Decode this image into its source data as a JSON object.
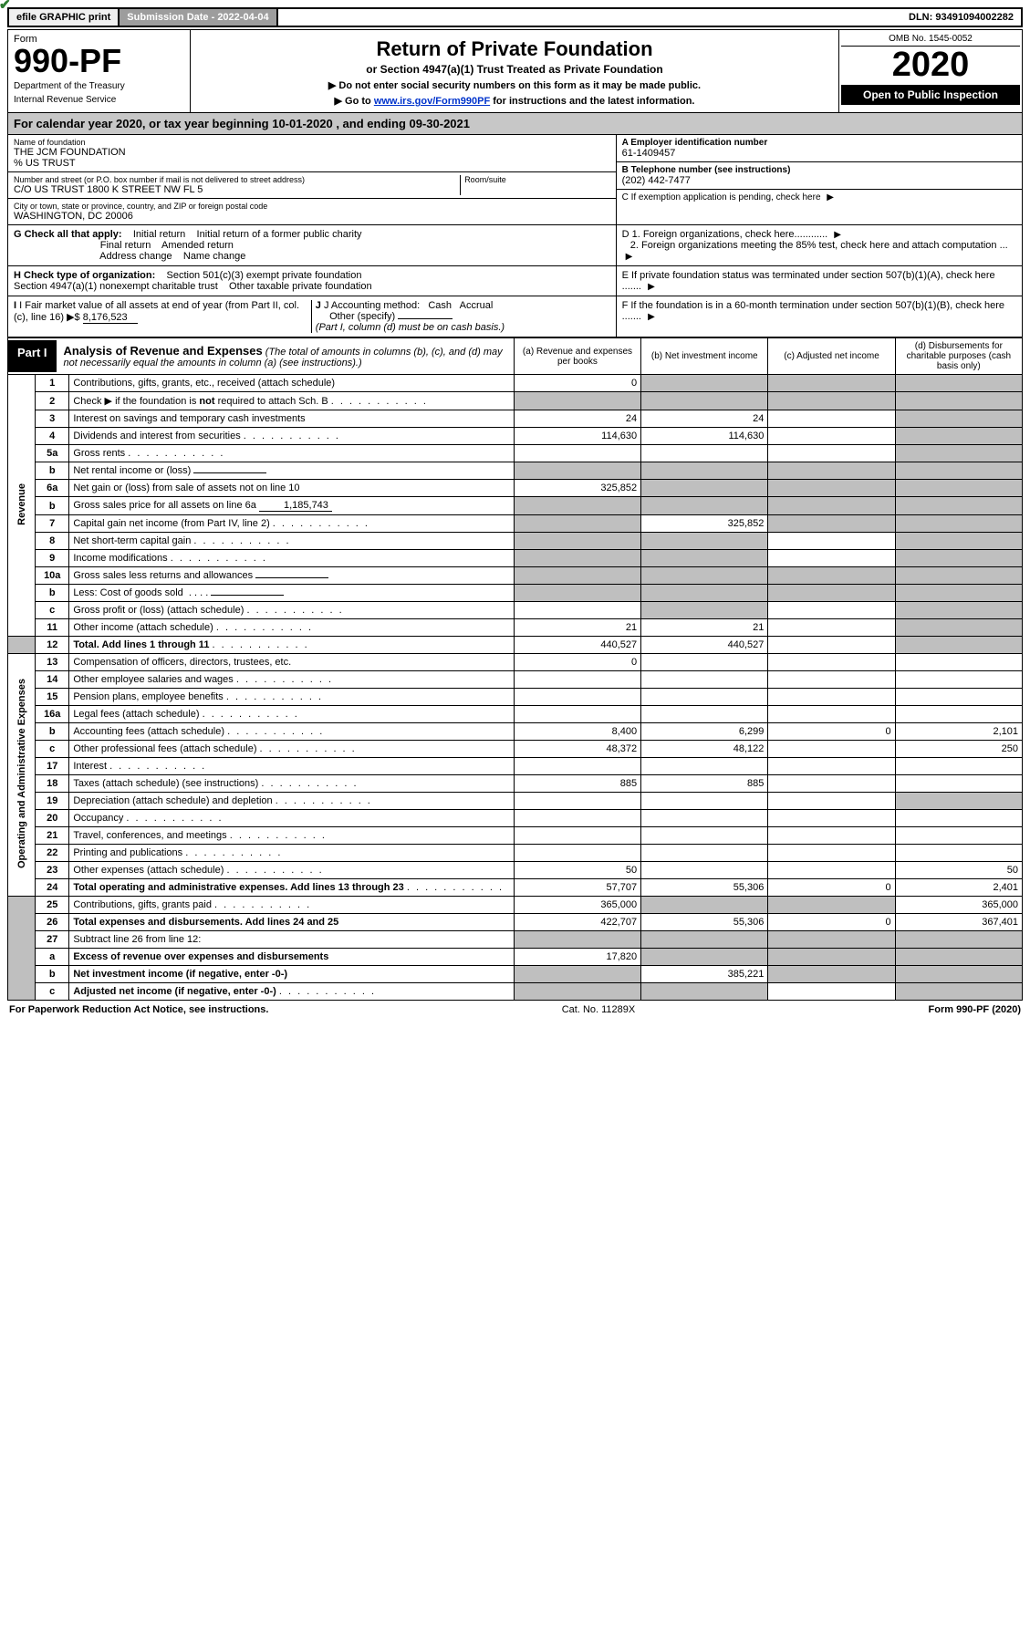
{
  "topbar": {
    "efile": "efile GRAPHIC print",
    "submission_label": "Submission Date - 2022-04-04",
    "dln_label": "DLN: 93491094002282"
  },
  "header": {
    "form_word": "Form",
    "form_number": "990-PF",
    "dept1": "Department of the Treasury",
    "dept2": "Internal Revenue Service",
    "title": "Return of Private Foundation",
    "subtitle": "or Section 4947(a)(1) Trust Treated as Private Foundation",
    "instr1": "▶ Do not enter social security numbers on this form as it may be made public.",
    "instr2_pre": "▶ Go to ",
    "instr2_link": "www.irs.gov/Form990PF",
    "instr2_post": " for instructions and the latest information.",
    "omb": "OMB No. 1545-0052",
    "year": "2020",
    "open_public": "Open to Public Inspection"
  },
  "cal_year": "For calendar year 2020, or tax year beginning 10-01-2020                         , and ending 09-30-2021",
  "foundation": {
    "name_label": "Name of foundation",
    "name": "THE JCM FOUNDATION",
    "care_of": "% US TRUST",
    "street_label": "Number and street (or P.O. box number if mail is not delivered to street address)",
    "street": "C/O US TRUST 1800 K STREET NW FL 5",
    "room_label": "Room/suite",
    "city_label": "City or town, state or province, country, and ZIP or foreign postal code",
    "city": "WASHINGTON, DC  20006"
  },
  "right_info": {
    "a_label": "A Employer identification number",
    "a_value": "61-1409457",
    "b_label": "B Telephone number (see instructions)",
    "b_value": "(202) 442-7477",
    "c_label": "C If exemption application is pending, check here",
    "d1": "D 1. Foreign organizations, check here............",
    "d2": "2. Foreign organizations meeting the 85% test, check here and attach computation ...",
    "e": "E  If private foundation status was terminated under section 507(b)(1)(A), check here .......",
    "f": "F  If the foundation is in a 60-month termination under section 507(b)(1)(B), check here ......."
  },
  "g_section": {
    "g_label": "G Check all that apply:",
    "initial_return": "Initial return",
    "initial_former": "Initial return of a former public charity",
    "final_return": "Final return",
    "amended": "Amended return",
    "address_change": "Address change",
    "name_change": "Name change",
    "h_label": "H Check type of organization:",
    "h_501c3": "Section 501(c)(3) exempt private foundation",
    "h_4947": "Section 4947(a)(1) nonexempt charitable trust",
    "h_other_taxable": "Other taxable private foundation",
    "i_label": "I Fair market value of all assets at end of year (from Part II, col. (c), line 16)",
    "i_value": "8,176,523",
    "j_label": "J Accounting method:",
    "j_cash": "Cash",
    "j_accrual": "Accrual",
    "j_other": "Other (specify)",
    "j_note": "(Part I, column (d) must be on cash basis.)"
  },
  "part1": {
    "label": "Part I",
    "title": "Analysis of Revenue and Expenses",
    "title_note": "(The total of amounts in columns (b), (c), and (d) may not necessarily equal the amounts in column (a) (see instructions).)",
    "col_a": "(a)   Revenue and expenses per books",
    "col_b": "(b)   Net investment income",
    "col_c": "(c)   Adjusted net income",
    "col_d": "(d)   Disbursements for charitable purposes (cash basis only)"
  },
  "sections": {
    "revenue": "Revenue",
    "opex": "Operating and Administrative Expenses"
  },
  "rows": {
    "r1": {
      "num": "1",
      "desc": "Contributions, gifts, grants, etc., received (attach schedule)",
      "a": "0",
      "b": "",
      "c": "",
      "d": ""
    },
    "r2": {
      "num": "2",
      "desc": "Check ▶ ☑ if the foundation is not required to attach Sch. B",
      "a": "",
      "b": "",
      "c": "",
      "d": ""
    },
    "r3": {
      "num": "3",
      "desc": "Interest on savings and temporary cash investments",
      "a": "24",
      "b": "24",
      "c": "",
      "d": ""
    },
    "r4": {
      "num": "4",
      "desc": "Dividends and interest from securities",
      "a": "114,630",
      "b": "114,630",
      "c": "",
      "d": ""
    },
    "r5a": {
      "num": "5a",
      "desc": "Gross rents",
      "a": "",
      "b": "",
      "c": "",
      "d": ""
    },
    "r5b": {
      "num": "b",
      "desc": "Net rental income or (loss)",
      "a": "",
      "b": "",
      "c": "",
      "d": ""
    },
    "r6a": {
      "num": "6a",
      "desc": "Net gain or (loss) from sale of assets not on line 10",
      "a": "325,852",
      "b": "",
      "c": "",
      "d": ""
    },
    "r6b": {
      "num": "b",
      "desc": "Gross sales price for all assets on line 6a",
      "inline": "1,185,743",
      "a": "",
      "b": "",
      "c": "",
      "d": ""
    },
    "r7": {
      "num": "7",
      "desc": "Capital gain net income (from Part IV, line 2)",
      "a": "",
      "b": "325,852",
      "c": "",
      "d": ""
    },
    "r8": {
      "num": "8",
      "desc": "Net short-term capital gain",
      "a": "",
      "b": "",
      "c": "",
      "d": ""
    },
    "r9": {
      "num": "9",
      "desc": "Income modifications",
      "a": "",
      "b": "",
      "c": "",
      "d": ""
    },
    "r10a": {
      "num": "10a",
      "desc": "Gross sales less returns and allowances",
      "a": "",
      "b": "",
      "c": "",
      "d": ""
    },
    "r10b": {
      "num": "b",
      "desc": "Less: Cost of goods sold",
      "a": "",
      "b": "",
      "c": "",
      "d": ""
    },
    "r10c": {
      "num": "c",
      "desc": "Gross profit or (loss) (attach schedule)",
      "a": "",
      "b": "",
      "c": "",
      "d": ""
    },
    "r11": {
      "num": "11",
      "desc": "Other income (attach schedule)",
      "a": "21",
      "b": "21",
      "c": "",
      "d": ""
    },
    "r12": {
      "num": "12",
      "desc": "Total. Add lines 1 through 11",
      "a": "440,527",
      "b": "440,527",
      "c": "",
      "d": ""
    },
    "r13": {
      "num": "13",
      "desc": "Compensation of officers, directors, trustees, etc.",
      "a": "0",
      "b": "",
      "c": "",
      "d": ""
    },
    "r14": {
      "num": "14",
      "desc": "Other employee salaries and wages",
      "a": "",
      "b": "",
      "c": "",
      "d": ""
    },
    "r15": {
      "num": "15",
      "desc": "Pension plans, employee benefits",
      "a": "",
      "b": "",
      "c": "",
      "d": ""
    },
    "r16a": {
      "num": "16a",
      "desc": "Legal fees (attach schedule)",
      "a": "",
      "b": "",
      "c": "",
      "d": ""
    },
    "r16b": {
      "num": "b",
      "desc": "Accounting fees (attach schedule)",
      "a": "8,400",
      "b": "6,299",
      "c": "0",
      "d": "2,101"
    },
    "r16c": {
      "num": "c",
      "desc": "Other professional fees (attach schedule)",
      "a": "48,372",
      "b": "48,122",
      "c": "",
      "d": "250"
    },
    "r17": {
      "num": "17",
      "desc": "Interest",
      "a": "",
      "b": "",
      "c": "",
      "d": ""
    },
    "r18": {
      "num": "18",
      "desc": "Taxes (attach schedule) (see instructions)",
      "a": "885",
      "b": "885",
      "c": "",
      "d": ""
    },
    "r19": {
      "num": "19",
      "desc": "Depreciation (attach schedule) and depletion",
      "a": "",
      "b": "",
      "c": "",
      "d": ""
    },
    "r20": {
      "num": "20",
      "desc": "Occupancy",
      "a": "",
      "b": "",
      "c": "",
      "d": ""
    },
    "r21": {
      "num": "21",
      "desc": "Travel, conferences, and meetings",
      "a": "",
      "b": "",
      "c": "",
      "d": ""
    },
    "r22": {
      "num": "22",
      "desc": "Printing and publications",
      "a": "",
      "b": "",
      "c": "",
      "d": ""
    },
    "r23": {
      "num": "23",
      "desc": "Other expenses (attach schedule)",
      "a": "50",
      "b": "",
      "c": "",
      "d": "50"
    },
    "r24": {
      "num": "24",
      "desc": "Total operating and administrative expenses. Add lines 13 through 23",
      "a": "57,707",
      "b": "55,306",
      "c": "0",
      "d": "2,401"
    },
    "r25": {
      "num": "25",
      "desc": "Contributions, gifts, grants paid",
      "a": "365,000",
      "b": "",
      "c": "",
      "d": "365,000"
    },
    "r26": {
      "num": "26",
      "desc": "Total expenses and disbursements. Add lines 24 and 25",
      "a": "422,707",
      "b": "55,306",
      "c": "0",
      "d": "367,401"
    },
    "r27": {
      "num": "27",
      "desc": "Subtract line 26 from line 12:",
      "a": "",
      "b": "",
      "c": "",
      "d": ""
    },
    "r27a": {
      "num": "a",
      "desc": "Excess of revenue over expenses and disbursements",
      "a": "17,820",
      "b": "",
      "c": "",
      "d": ""
    },
    "r27b": {
      "num": "b",
      "desc": "Net investment income (if negative, enter -0-)",
      "a": "",
      "b": "385,221",
      "c": "",
      "d": ""
    },
    "r27c": {
      "num": "c",
      "desc": "Adjusted net income (if negative, enter -0-)",
      "a": "",
      "b": "",
      "c": "",
      "d": ""
    }
  },
  "footer": {
    "left": "For Paperwork Reduction Act Notice, see instructions.",
    "cat": "Cat. No. 11289X",
    "right": "Form 990-PF (2020)"
  },
  "colors": {
    "grey_header": "#c7c7c7",
    "grey_cell": "#bfbfbf",
    "link": "#0033cc",
    "check_green": "#2e7d32",
    "submission_bg": "#9d9d9d"
  }
}
